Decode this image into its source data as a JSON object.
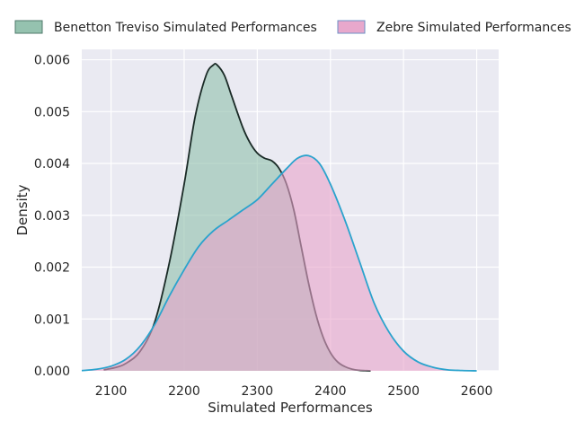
{
  "chart_data": {
    "type": "area",
    "xlabel": "Simulated Performances",
    "ylabel": "Density",
    "xlim": [
      2060,
      2630
    ],
    "ylim": [
      0,
      0.0062
    ],
    "xticks": [
      2100,
      2200,
      2300,
      2400,
      2500,
      2600
    ],
    "yticks": [
      0.0,
      0.001,
      0.002,
      0.003,
      0.004,
      0.005,
      0.006
    ],
    "ytick_labels": [
      "0.000",
      "0.001",
      "0.002",
      "0.003",
      "0.004",
      "0.005",
      "0.006"
    ],
    "grid": true,
    "background": "#eaeaf2",
    "legend_placement": "top, outside plot",
    "series": [
      {
        "name": "Benetton Treviso Simulated Performances",
        "fill": "#8fbfab",
        "edge": "#1a2a26",
        "x": [
          2090,
          2105,
          2120,
          2140,
          2160,
          2180,
          2200,
          2215,
          2230,
          2240,
          2245,
          2255,
          2265,
          2280,
          2290,
          2300,
          2310,
          2320,
          2330,
          2340,
          2350,
          2360,
          2370,
          2380,
          2390,
          2400,
          2410,
          2420,
          2430,
          2440,
          2450,
          2455
        ],
        "y": [
          2e-05,
          6e-05,
          0.00014,
          0.00038,
          0.00095,
          0.0021,
          0.0036,
          0.0049,
          0.0057,
          0.0059,
          0.0059,
          0.0057,
          0.0053,
          0.0047,
          0.0044,
          0.0042,
          0.0041,
          0.00405,
          0.0039,
          0.0036,
          0.0031,
          0.0024,
          0.0017,
          0.0011,
          0.00065,
          0.00035,
          0.00017,
          8e-05,
          3e-05,
          1e-05,
          3e-06,
          0.0
        ]
      },
      {
        "name": "Zebre Simulated Performances",
        "fill": "#e7a3c9",
        "edge": "#2aa3cd",
        "x": [
          2060,
          2080,
          2100,
          2120,
          2140,
          2160,
          2180,
          2200,
          2220,
          2240,
          2260,
          2280,
          2300,
          2320,
          2340,
          2355,
          2370,
          2385,
          2400,
          2420,
          2440,
          2460,
          2480,
          2500,
          2520,
          2540,
          2560,
          2580,
          2600
        ],
        "y": [
          5e-06,
          3e-05,
          9e-05,
          0.00022,
          0.00048,
          0.0009,
          0.00145,
          0.00195,
          0.0024,
          0.0027,
          0.0029,
          0.0031,
          0.0033,
          0.0036,
          0.0039,
          0.0041,
          0.00415,
          0.004,
          0.0036,
          0.0029,
          0.0021,
          0.0013,
          0.00075,
          0.00038,
          0.00017,
          7e-05,
          2e-05,
          6e-06,
          0.0
        ]
      }
    ]
  }
}
